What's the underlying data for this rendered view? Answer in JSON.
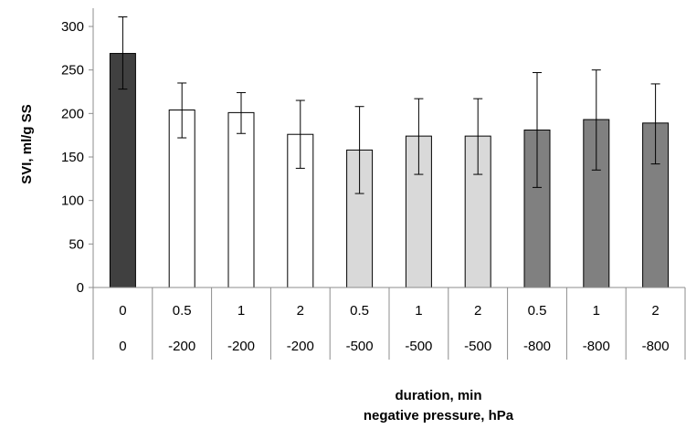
{
  "chart_data": {
    "type": "bar",
    "ylabel": "SVI, ml/g SS",
    "xlabel": [
      "duration, min",
      "negative pressure, hPa"
    ],
    "ylim": [
      0,
      300
    ],
    "yticks": [
      0,
      50,
      100,
      150,
      200,
      250,
      300
    ],
    "grid": false,
    "legend": "none",
    "categories": [
      {
        "duration": "0",
        "pressure": "0"
      },
      {
        "duration": "0.5",
        "pressure": "-200"
      },
      {
        "duration": "1",
        "pressure": "-200"
      },
      {
        "duration": "2",
        "pressure": "-200"
      },
      {
        "duration": "0.5",
        "pressure": "-500"
      },
      {
        "duration": "1",
        "pressure": "-500"
      },
      {
        "duration": "2",
        "pressure": "-500"
      },
      {
        "duration": "0.5",
        "pressure": "-800"
      },
      {
        "duration": "1",
        "pressure": "-800"
      },
      {
        "duration": "2",
        "pressure": "-800"
      }
    ],
    "values": [
      269,
      204,
      201,
      176,
      158,
      174,
      174,
      181,
      193,
      189
    ],
    "error_low": [
      228,
      172,
      177,
      137,
      108,
      130,
      130,
      115,
      135,
      142
    ],
    "error_high": [
      311,
      235,
      224,
      215,
      208,
      217,
      217,
      247,
      250,
      234
    ],
    "colors": [
      "#404040",
      "#ffffff",
      "#ffffff",
      "#ffffff",
      "#d9d9d9",
      "#d9d9d9",
      "#d9d9d9",
      "#808080",
      "#808080",
      "#808080"
    ],
    "bar_stroke": "#000000"
  }
}
